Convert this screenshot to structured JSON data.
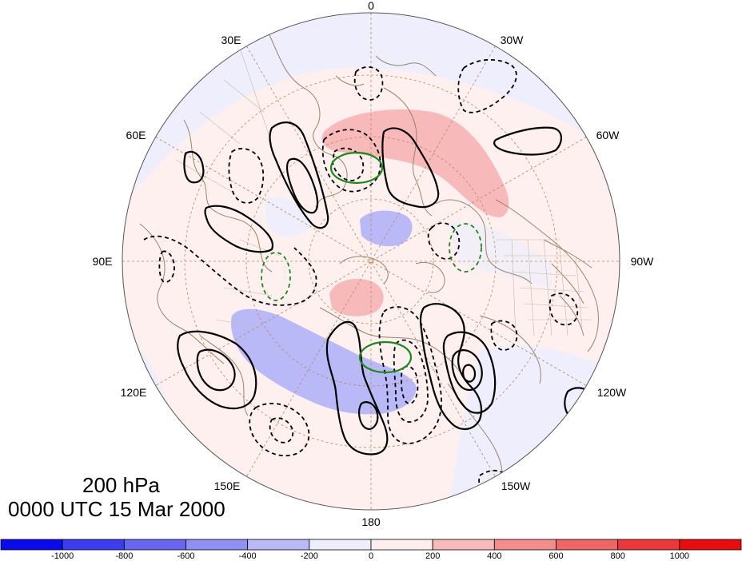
{
  "map": {
    "projection": "north-polar-stereographic",
    "field": "200 hPa height anomaly",
    "longitude_labels": [
      "0",
      "30W",
      "60W",
      "90W",
      "120W",
      "150W",
      "180",
      "150E",
      "120E",
      "90E",
      "60E",
      "30E"
    ],
    "contour_colors": {
      "positive": "#000000",
      "negative_dashed": "#000000",
      "highlight": "#1a8a1a"
    },
    "coastline_color": "#9a8468"
  },
  "title": {
    "level": "200 hPa",
    "time": "0000 UTC 15 Mar 2000"
  },
  "colorbar": {
    "tick_labels": [
      "-1000",
      "-800",
      "-600",
      "-400",
      "-200",
      "0",
      "200",
      "400",
      "600",
      "800",
      "1000"
    ],
    "colors": [
      "#0a0aee",
      "#3c3cf2",
      "#6666f2",
      "#9090f4",
      "#b9b9f8",
      "#eeeefc",
      "#fdeeee",
      "#f7b9b9",
      "#f38c8c",
      "#f06464",
      "#ec3838",
      "#ea0c0c"
    ]
  }
}
